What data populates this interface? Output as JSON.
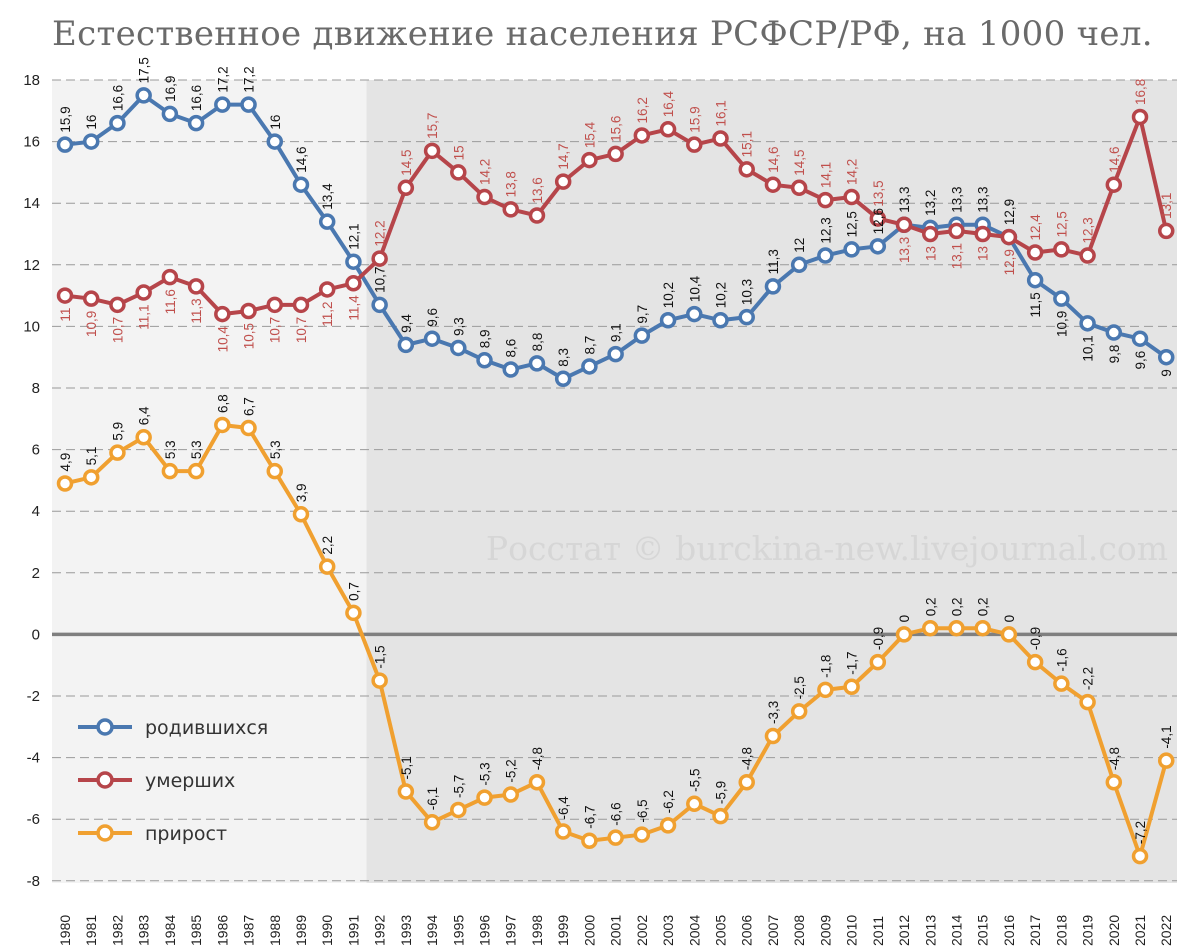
{
  "chart_data": {
    "type": "line",
    "title": "Естественное движение населения РСФСР/РФ, на 1000 чел.",
    "watermark": "Росстат © burckina-new.livejournal.com",
    "ylim": [
      -8,
      18
    ],
    "yticks": [
      -8,
      -6,
      -4,
      -2,
      0,
      2,
      4,
      6,
      8,
      10,
      12,
      14,
      16,
      18
    ],
    "x": [
      1980,
      1981,
      1982,
      1983,
      1984,
      1985,
      1986,
      1987,
      1988,
      1989,
      1990,
      1991,
      1992,
      1993,
      1994,
      1995,
      1996,
      1997,
      1998,
      1999,
      2000,
      2001,
      2002,
      2003,
      2004,
      2005,
      2006,
      2007,
      2008,
      2009,
      2010,
      2011,
      2012,
      2013,
      2014,
      2015,
      2016,
      2017,
      2018,
      2019,
      2020,
      2021,
      2022
    ],
    "series": [
      {
        "name": "родившихся",
        "color": "#4a78b0",
        "values": [
          15.9,
          16,
          16.6,
          17.5,
          16.9,
          16.6,
          17.2,
          17.2,
          16,
          14.6,
          13.4,
          12.1,
          10.7,
          9.4,
          9.6,
          9.3,
          8.9,
          8.6,
          8.8,
          8.3,
          8.7,
          9.1,
          9.7,
          10.2,
          10.4,
          10.2,
          10.3,
          11.3,
          12,
          12.3,
          12.5,
          12.6,
          13.3,
          13.2,
          13.3,
          13.3,
          12.9,
          11.5,
          10.9,
          10.1,
          9.8,
          9.6,
          9
        ],
        "labels": [
          "15,9",
          "16",
          "16,6",
          "17,5",
          "16,9",
          "16,6",
          "17,2",
          "17,2",
          "16",
          "14,6",
          "13,4",
          "12,1",
          "10,7",
          "9,4",
          "9,6",
          "9,3",
          "8,9",
          "8,6",
          "8,8",
          "8,3",
          "8,7",
          "9,1",
          "9,7",
          "10,2",
          "10,4",
          "10,2",
          "10,3",
          "11,3",
          "12",
          "12,3",
          "12,5",
          "12,6",
          "13,3",
          "13,2",
          "13,3",
          "13,3",
          "12,9",
          "11,5",
          "10,9",
          "10,1",
          "9,8",
          "9,6",
          "9"
        ]
      },
      {
        "name": "умерших",
        "color": "#b6454a",
        "values": [
          11,
          10.9,
          10.7,
          11.1,
          11.6,
          11.3,
          10.4,
          10.5,
          10.7,
          10.7,
          11.2,
          11.4,
          12.2,
          14.5,
          15.7,
          15,
          14.2,
          13.8,
          13.6,
          14.7,
          15.4,
          15.6,
          16.2,
          16.4,
          15.9,
          16.1,
          15.1,
          14.6,
          14.5,
          14.1,
          14.2,
          13.5,
          13.3,
          13,
          13.1,
          13,
          12.9,
          12.4,
          12.5,
          12.3,
          14.6,
          16.8,
          13.1
        ],
        "labels": [
          "11",
          "10,9",
          "10,7",
          "11,1",
          "11,6",
          "11,3",
          "10,4",
          "10,5",
          "10,7",
          "10,7",
          "11,2",
          "11,4",
          "12,2",
          "14,5",
          "15,7",
          "15",
          "14,2",
          "13,8",
          "13,6",
          "14,7",
          "15,4",
          "15,6",
          "16,2",
          "16,4",
          "15,9",
          "16,1",
          "15,1",
          "14,6",
          "14,5",
          "14,1",
          "14,2",
          "13,5",
          "13,3",
          "13",
          "13,1",
          "13",
          "12,9",
          "12,4",
          "12,5",
          "12,3",
          "14,6",
          "16,8",
          "13,1"
        ]
      },
      {
        "name": "прирост",
        "color": "#f0a030",
        "values": [
          4.9,
          5.1,
          5.9,
          6.4,
          5.3,
          5.3,
          6.8,
          6.7,
          5.3,
          3.9,
          2.2,
          0.7,
          -1.5,
          -5.1,
          -6.1,
          -5.7,
          -5.3,
          -5.2,
          -4.8,
          -6.4,
          -6.7,
          -6.6,
          -6.5,
          -6.2,
          -5.5,
          -5.9,
          -4.8,
          -3.3,
          -2.5,
          -1.8,
          -1.7,
          -0.9,
          0,
          0.2,
          0.2,
          0.2,
          0,
          -0.9,
          -1.6,
          -2.2,
          -4.8,
          -7.2,
          -4.1
        ],
        "labels": [
          "4,9",
          "5,1",
          "5,9",
          "6,4",
          "5,3",
          "5,3",
          "6,8",
          "6,7",
          "5,3",
          "3,9",
          "2,2",
          "0,7",
          "-1,5",
          "-5,1",
          "-6,1",
          "-5,7",
          "-5,3",
          "-5,2",
          "-4,8",
          "-6,4",
          "-6,7",
          "-6,6",
          "-6,5",
          "-6,2",
          "-5,5",
          "-5,9",
          "-4,8",
          "-3,3",
          "-2,5",
          "-1,8",
          "-1,7",
          "-0,9",
          "0",
          "0,2",
          "0,2",
          "0,2",
          "0",
          "-0,9",
          "-1,6",
          "-2,2",
          "-4,8",
          "-7,2",
          "-4,1"
        ]
      }
    ],
    "legend": [
      "родившихся",
      "умерших",
      "прирост"
    ],
    "legend_position": "bottom-left",
    "shaded_period": [
      1992,
      2022
    ],
    "grid": true
  }
}
